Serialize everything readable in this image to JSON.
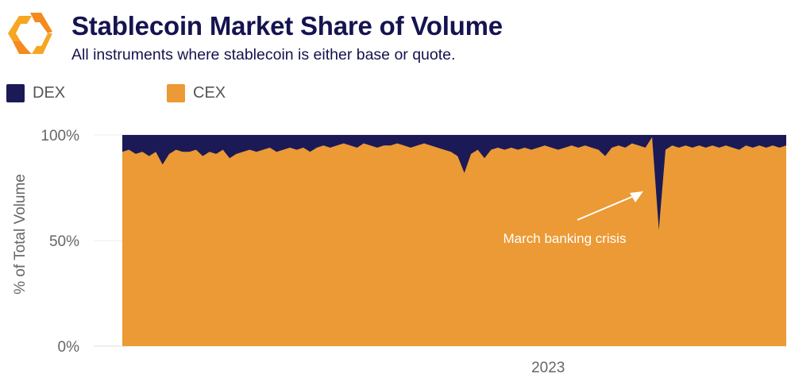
{
  "header": {
    "title": "Stablecoin Market Share of Volume",
    "subtitle": "All instruments where stablecoin is either base or quote."
  },
  "chart_data": {
    "type": "area",
    "stacked": true,
    "title": "Stablecoin Market Share of Volume",
    "subtitle": "All instruments where stablecoin is either base or quote.",
    "ylabel": "% of Total Volume",
    "xlabel": "",
    "ylim": [
      0,
      100
    ],
    "y_ticks": [
      {
        "value": 0,
        "label": "0%"
      },
      {
        "value": 50,
        "label": "50%"
      },
      {
        "value": 100,
        "label": "100%"
      }
    ],
    "x_ticks": [
      {
        "index": 63.5,
        "label": "2023"
      }
    ],
    "legend": {
      "placement": "top-left",
      "entries": [
        {
          "name": "DEX",
          "color": "#1b1a57"
        },
        {
          "name": "CEX",
          "color": "#ec9a35"
        }
      ]
    },
    "series": [
      {
        "name": "CEX",
        "color": "#ec9a35",
        "values": [
          92,
          93,
          91,
          92,
          90,
          92,
          86,
          91,
          93,
          92,
          92,
          93,
          90,
          92,
          91,
          93,
          89,
          91,
          92,
          93,
          92,
          93,
          94,
          92,
          93,
          94,
          93,
          94,
          92,
          94,
          95,
          94,
          95,
          96,
          95,
          94,
          96,
          95,
          94,
          95,
          95,
          96,
          95,
          94,
          95,
          96,
          95,
          94,
          93,
          92,
          90,
          82,
          91,
          93,
          89,
          93,
          94,
          93,
          94,
          93,
          94,
          93,
          94,
          95,
          94,
          93,
          94,
          95,
          94,
          95,
          94,
          93,
          90,
          94,
          95,
          94,
          96,
          95,
          94,
          99,
          55,
          93,
          95,
          94,
          95,
          94,
          95,
          94,
          95,
          94,
          95,
          94,
          93,
          95,
          94,
          95,
          94,
          95,
          94,
          95
        ]
      },
      {
        "name": "DEX",
        "color": "#1b1a57",
        "note": "remainder to 100%"
      }
    ],
    "annotations": [
      {
        "text": "March banking crisis",
        "target_index": 80
      }
    ]
  }
}
